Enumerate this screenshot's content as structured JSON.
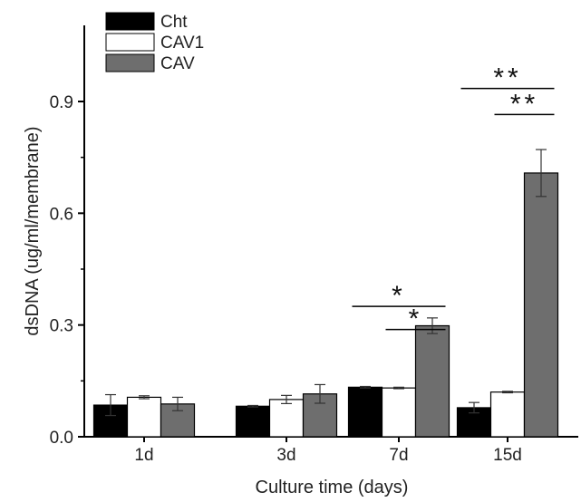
{
  "chart_data": {
    "type": "bar",
    "xlabel": "Culture time (days)",
    "ylabel": "dsDNA (ug/ml/membrane)",
    "ylim": [
      0,
      1.0
    ],
    "yticks": [
      "0.0",
      "0.3",
      "0.6",
      "0.9"
    ],
    "categories": [
      "1d",
      "3d",
      "7d",
      "15d"
    ],
    "series": [
      {
        "name": "Cht",
        "values": [
          0.085,
          0.082,
          0.133,
          0.078
        ],
        "errors": [
          0.028,
          0.002,
          0.002,
          0.014
        ],
        "color": "#000000"
      },
      {
        "name": "CAV1",
        "values": [
          0.106,
          0.1,
          0.131,
          0.12
        ],
        "errors": [
          0.004,
          0.011,
          0.002,
          0.002
        ],
        "color": "#ffffff"
      },
      {
        "name": "CAV",
        "values": [
          0.088,
          0.115,
          0.298,
          0.708
        ],
        "errors": [
          0.018,
          0.025,
          0.021,
          0.063
        ],
        "color": "#6e6e6e"
      }
    ],
    "legend_position": "top-left",
    "grid": false,
    "annotations": [
      {
        "text": "*",
        "category": "7d",
        "from_series": "Cht",
        "to_series": "CAV",
        "level": 0.35
      },
      {
        "text": "*",
        "category": "7d",
        "from_series": "CAV1",
        "to_series": "CAV",
        "level": 0.288
      },
      {
        "text": "**",
        "category": "15d",
        "from_series": "Cht",
        "to_series": "CAV",
        "level": 0.935
      },
      {
        "text": "**",
        "category": "15d",
        "from_series": "CAV1",
        "to_series": "CAV",
        "level": 0.865
      }
    ]
  }
}
